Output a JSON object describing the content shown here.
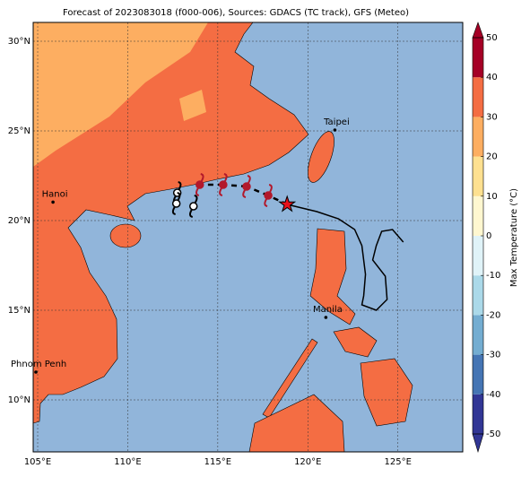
{
  "map": {
    "title": "Forecast of 2023083018 (f000-006), Sources: GDACS (TC track), GFS (Meteo)",
    "lonlim": [
      104.75,
      128.6
    ],
    "latlim": [
      7.1,
      31.05
    ],
    "lon_ticks": [
      {
        "value": 105,
        "label": "105°E"
      },
      {
        "value": 110,
        "label": "110°E"
      },
      {
        "value": 115,
        "label": "115°E"
      },
      {
        "value": 120,
        "label": "120°E"
      },
      {
        "value": 125,
        "label": "125°E"
      }
    ],
    "lat_ticks": [
      {
        "value": 10,
        "label": "10°N"
      },
      {
        "value": 15,
        "label": "15°N"
      },
      {
        "value": 20,
        "label": "20°N"
      },
      {
        "value": 25,
        "label": "25°N"
      },
      {
        "value": 30,
        "label": "30°N"
      }
    ],
    "cities": [
      {
        "name": "Hanoi",
        "lon": 105.85,
        "lat": 21.03
      },
      {
        "name": "Taipei",
        "lon": 121.5,
        "lat": 25.05
      },
      {
        "name": "Manila",
        "lon": 121.0,
        "lat": 14.6
      },
      {
        "name": "Phnom Penh",
        "lon": 104.9,
        "lat": 11.55
      }
    ],
    "past_track": {
      "lon": [
        118.85,
        120.5,
        121.7,
        122.6,
        123.0,
        123.2,
        123.1,
        123.0,
        123.8,
        124.4,
        124.3,
        123.6,
        123.8,
        124.1,
        124.7,
        125.3
      ],
      "lat": [
        20.9,
        20.5,
        20.1,
        19.5,
        18.6,
        17.0,
        15.8,
        15.3,
        15.0,
        15.6,
        16.9,
        17.8,
        18.6,
        19.4,
        19.5,
        18.8
      ]
    },
    "current_position": {
      "lon": 118.85,
      "lat": 20.9
    },
    "forecast_points": [
      {
        "lon": 117.8,
        "lat": 21.4,
        "color": "#b2182b"
      },
      {
        "lon": 116.6,
        "lat": 21.9,
        "color": "#b2182b"
      },
      {
        "lon": 115.3,
        "lat": 22.0,
        "color": "#b2182b"
      },
      {
        "lon": 114.0,
        "lat": 22.0,
        "color": "#b2182b"
      },
      {
        "lon": 112.75,
        "lat": 21.55,
        "color": "#ffffff"
      },
      {
        "lon": 112.7,
        "lat": 20.95,
        "color": "#ffffff"
      },
      {
        "lon": 113.65,
        "lat": 20.8,
        "color": "#ffffff"
      }
    ],
    "colorbar": {
      "label": "Max Temperature (°C)",
      "levels": [
        -50,
        -40,
        -30,
        -20,
        -10,
        0,
        10,
        20,
        30,
        40,
        50
      ],
      "colors": [
        "#313695",
        "#4575b4",
        "#74add1",
        "#abd9e9",
        "#e0f3f8",
        "#fff7d0",
        "#fee090",
        "#fdae61",
        "#f46d43",
        "#a50026"
      ],
      "ticks": [
        -50,
        -40,
        -30,
        -20,
        -10,
        0,
        10,
        20,
        30,
        40,
        50
      ]
    }
  }
}
